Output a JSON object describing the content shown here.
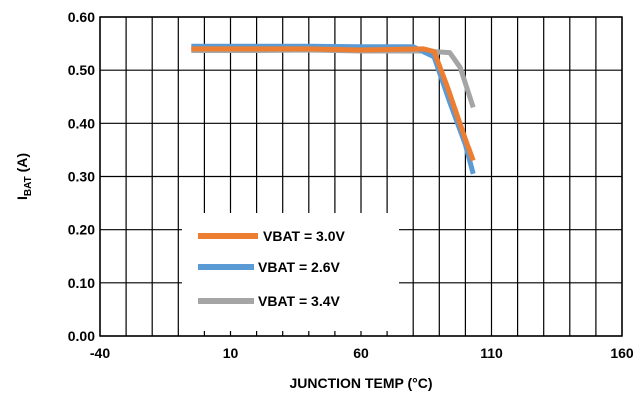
{
  "chart_data": {
    "type": "line",
    "xlabel": "JUNCTION TEMP (°C)",
    "ylabel_main": "I",
    "ylabel_sub": "BAT",
    "ylabel_unit": " (A)",
    "xlim": [
      -40,
      160
    ],
    "ylim": [
      0.0,
      0.6
    ],
    "x_ticks": [
      "-40",
      "10",
      "60",
      "110",
      "160"
    ],
    "y_ticks": [
      "0.00",
      "0.10",
      "0.20",
      "0.30",
      "0.40",
      "0.50",
      "0.60"
    ],
    "x_minor_step": 10,
    "y_step": 0.1,
    "grid": true,
    "legend_placement": "lower-left",
    "series": [
      {
        "name": "VBAT = 3.0V",
        "color": "#ED7D31",
        "points": [
          [
            -5,
            0.54
          ],
          [
            20,
            0.54
          ],
          [
            40,
            0.54
          ],
          [
            60,
            0.538
          ],
          [
            84,
            0.54
          ],
          [
            88,
            0.535
          ],
          [
            93,
            0.47
          ],
          [
            100,
            0.37
          ],
          [
            103,
            0.33
          ]
        ]
      },
      {
        "name": "VBAT = 2.6V",
        "color": "#5B9BD5",
        "points": [
          [
            -5,
            0.545
          ],
          [
            20,
            0.545
          ],
          [
            40,
            0.545
          ],
          [
            60,
            0.544
          ],
          [
            80,
            0.544
          ],
          [
            88,
            0.525
          ],
          [
            94,
            0.44
          ],
          [
            100,
            0.36
          ],
          [
            103,
            0.305
          ]
        ]
      },
      {
        "name": "VBAT = 3.4V",
        "color": "#A5A5A5",
        "points": [
          [
            -5,
            0.537
          ],
          [
            20,
            0.537
          ],
          [
            40,
            0.538
          ],
          [
            60,
            0.536
          ],
          [
            84,
            0.536
          ],
          [
            94,
            0.533
          ],
          [
            98,
            0.505
          ],
          [
            101,
            0.46
          ],
          [
            103,
            0.43
          ]
        ]
      }
    ]
  }
}
